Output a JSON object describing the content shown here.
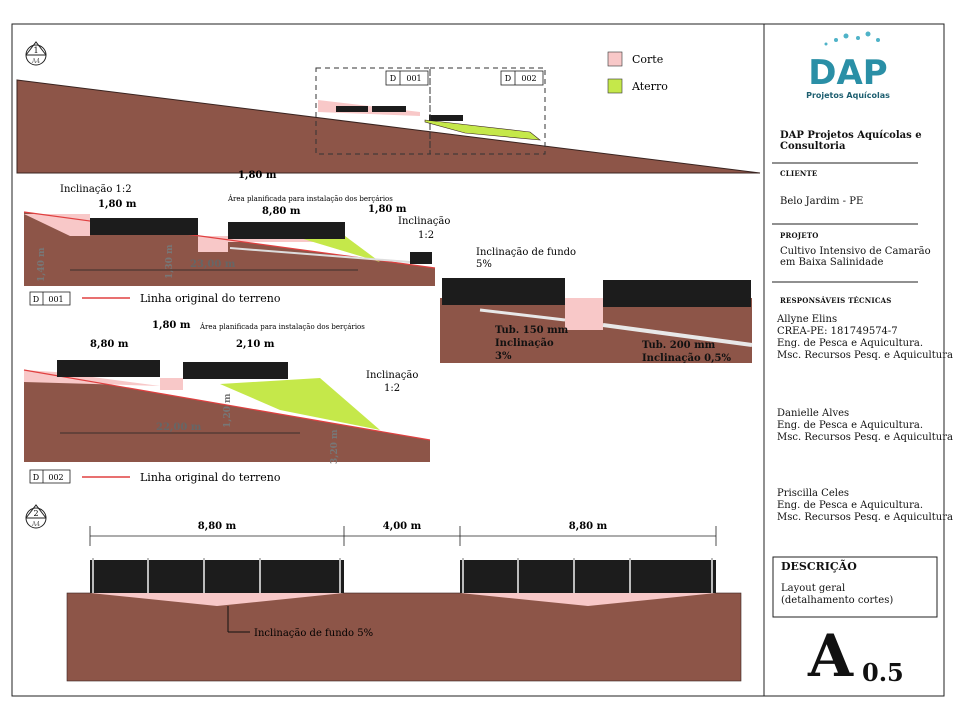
{
  "legend": {
    "cut_label": "Corte",
    "fill_label": "Aterro",
    "cut_color": "#f8c8c8",
    "fill_color": "#c5e84a",
    "terrain_color": "#8d5548",
    "tank_color": "#1c1c1c"
  },
  "overview": {
    "view_number": "1",
    "sheet_ref": "A4",
    "detail_tags": [
      {
        "d": "D",
        "ref": "001"
      },
      {
        "d": "D",
        "ref": "002"
      }
    ]
  },
  "section_001": {
    "d": "D",
    "ref": "001",
    "slope_left": "Inclinação 1:2",
    "dim_left": "1,80 m",
    "dim_top": "1,80 m",
    "nursery_area": "Área planificada para instalação dos berçários",
    "dim_tank": "8,80 m",
    "dim_right": "1,80 m",
    "slope_right_line1": "Inclinação",
    "slope_right_line2": "1:2",
    "dim_height": "1,40 m",
    "dim_depth": "1,30 m",
    "dim_length": "23,00 m",
    "original_line": "Linha original do terreno"
  },
  "section_002": {
    "d": "D",
    "ref": "002",
    "dim_tank": "8,80 m",
    "dim_top": "1,80 m",
    "nursery_area": "Área planificada para instalação dos berçários",
    "dim_right": "2,10 m",
    "slope_right_line1": "Inclinação",
    "slope_right_line2": "1:2",
    "dim_depth": "1,20 m",
    "dim_length": "22,00 m",
    "dim_height": "3,20 m",
    "original_line": "Linha original do terreno"
  },
  "detail": {
    "slope_label_line1": "Inclinação de fundo",
    "slope_label_line2": "5%",
    "tube1_line1": "Tub. 150 mm",
    "tube1_line2": "Inclinação",
    "tube1_line3": "3%",
    "tube2_line1": "Tub. 200 mm",
    "tube2_line2": "Inclinação 0,5%"
  },
  "view2": {
    "view_number": "2",
    "sheet_ref": "A4",
    "dim_1": "8,80 m",
    "dim_2": "4,00 m",
    "dim_3": "8,80 m",
    "bottom_slope": "Inclinação de fundo 5%"
  },
  "title_block": {
    "logo_text": "DAP",
    "logo_subtitle": "Projetos Aquícolas",
    "logo_color": "#2a8fa6",
    "company_line1": "DAP Projetos Aquícolas e",
    "company_line2": "Consultoria",
    "client_heading": "CLIENTE",
    "client": "Belo Jardim - PE",
    "project_heading": "PROJETO",
    "project_line1": "Cultivo Intensivo de Camarão",
    "project_line2": "em Baixa Salinidade",
    "tech_heading": "RESPONSÁVEIS TÉCNICAS",
    "persons": [
      {
        "name": "Allyne Elins",
        "line2": "CREA-PE: 181749574-7",
        "line3": "Eng. de Pesca e Aquicultura.",
        "line4": "Msc. Recursos Pesq. e Aquicultura"
      },
      {
        "name": "Danielle Alves",
        "line2": "Eng. de Pesca e Aquicultura.",
        "line3": "Msc. Recursos Pesq. e Aquicultura"
      },
      {
        "name": "Priscilla Celes",
        "line2": "Eng. de Pesca e Aquicultura.",
        "line3": "Msc. Recursos Pesq. e Aquicultura"
      }
    ],
    "description_heading": "DESCRIÇÃO",
    "description_line1": "Layout geral",
    "description_line2": "(detalhamento cortes)",
    "sheet_size": "A",
    "sheet_scale": "0.5"
  }
}
